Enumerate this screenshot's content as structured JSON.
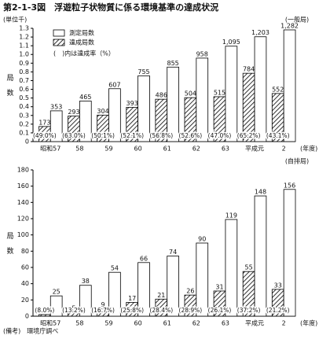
{
  "title": "第2-1-3図　浮遊粒子状物質に係る環境基準の達成状況",
  "note": "(備考)　環境庁調べ",
  "chart_data": [
    {
      "type": "bar",
      "y_unit": "(単位千)",
      "ylabel": "局数",
      "region": "(一般局)",
      "xlabel": "(年度)",
      "categories": [
        "昭和57",
        "58",
        "59",
        "60",
        "61",
        "62",
        "63",
        "平成元",
        "2"
      ],
      "series": [
        {
          "name": "達成局数",
          "color": "#ffffff",
          "pattern": "hatch",
          "values": [
            0.173,
            0.293,
            0.304,
            0.393,
            0.486,
            0.504,
            0.515,
            0.784,
            0.552
          ],
          "value_labels": [
            "173",
            "293",
            "304",
            "393",
            "486",
            "504",
            "515",
            "784",
            "552"
          ]
        },
        {
          "name": "測定局数",
          "color": "#ffffff",
          "values": [
            0.353,
            0.465,
            0.607,
            0.755,
            0.855,
            0.958,
            1.095,
            1.203,
            1.282
          ],
          "value_labels": [
            "353",
            "465",
            "607",
            "755",
            "855",
            "958",
            "1,095",
            "1,203",
            "1,282"
          ]
        }
      ],
      "rate_labels": [
        "(49.0%)",
        "(63.0%)",
        "(50.1%)",
        "(52.1%)",
        "(56.8%)",
        "(52.6%)",
        "(47.0%)",
        "(65.2%)",
        "(43.1%)"
      ],
      "legend_note": "(　)内は達成率（%）",
      "ylim": [
        0,
        1.3
      ],
      "yticks": [
        0,
        0.1,
        0.2,
        0.3,
        0.4,
        0.5,
        0.6,
        0.7,
        0.8,
        0.9,
        {
          "value": 1,
          "label": "1.0"
        },
        1.1,
        1.2,
        1.3
      ]
    },
    {
      "type": "bar",
      "ylabel": "局数",
      "region": "(自排局)",
      "xlabel": "(年度)",
      "categories": [
        "昭和57",
        "58",
        "59",
        "60",
        "61",
        "62",
        "63",
        "平成元",
        "2"
      ],
      "series": [
        {
          "name": "達成局数",
          "color": "#ffffff",
          "pattern": "hatch",
          "values": [
            2,
            5,
            9,
            17,
            21,
            26,
            31,
            55,
            33
          ]
        },
        {
          "name": "測定局数",
          "color": "#ffffff",
          "values": [
            25,
            38,
            54,
            66,
            74,
            90,
            119,
            148,
            156
          ]
        }
      ],
      "rate_labels": [
        "(8.0%)",
        "(13.2%)",
        "(16.7%)",
        "(25.8%)",
        "(28.4%)",
        "(28.9%)",
        "(26.1%)",
        "(37.2%)",
        "(21.2%)"
      ],
      "ylim": [
        0,
        180
      ],
      "yticks": [
        0,
        20,
        40,
        60,
        80,
        100,
        120,
        140,
        160,
        180
      ]
    }
  ]
}
